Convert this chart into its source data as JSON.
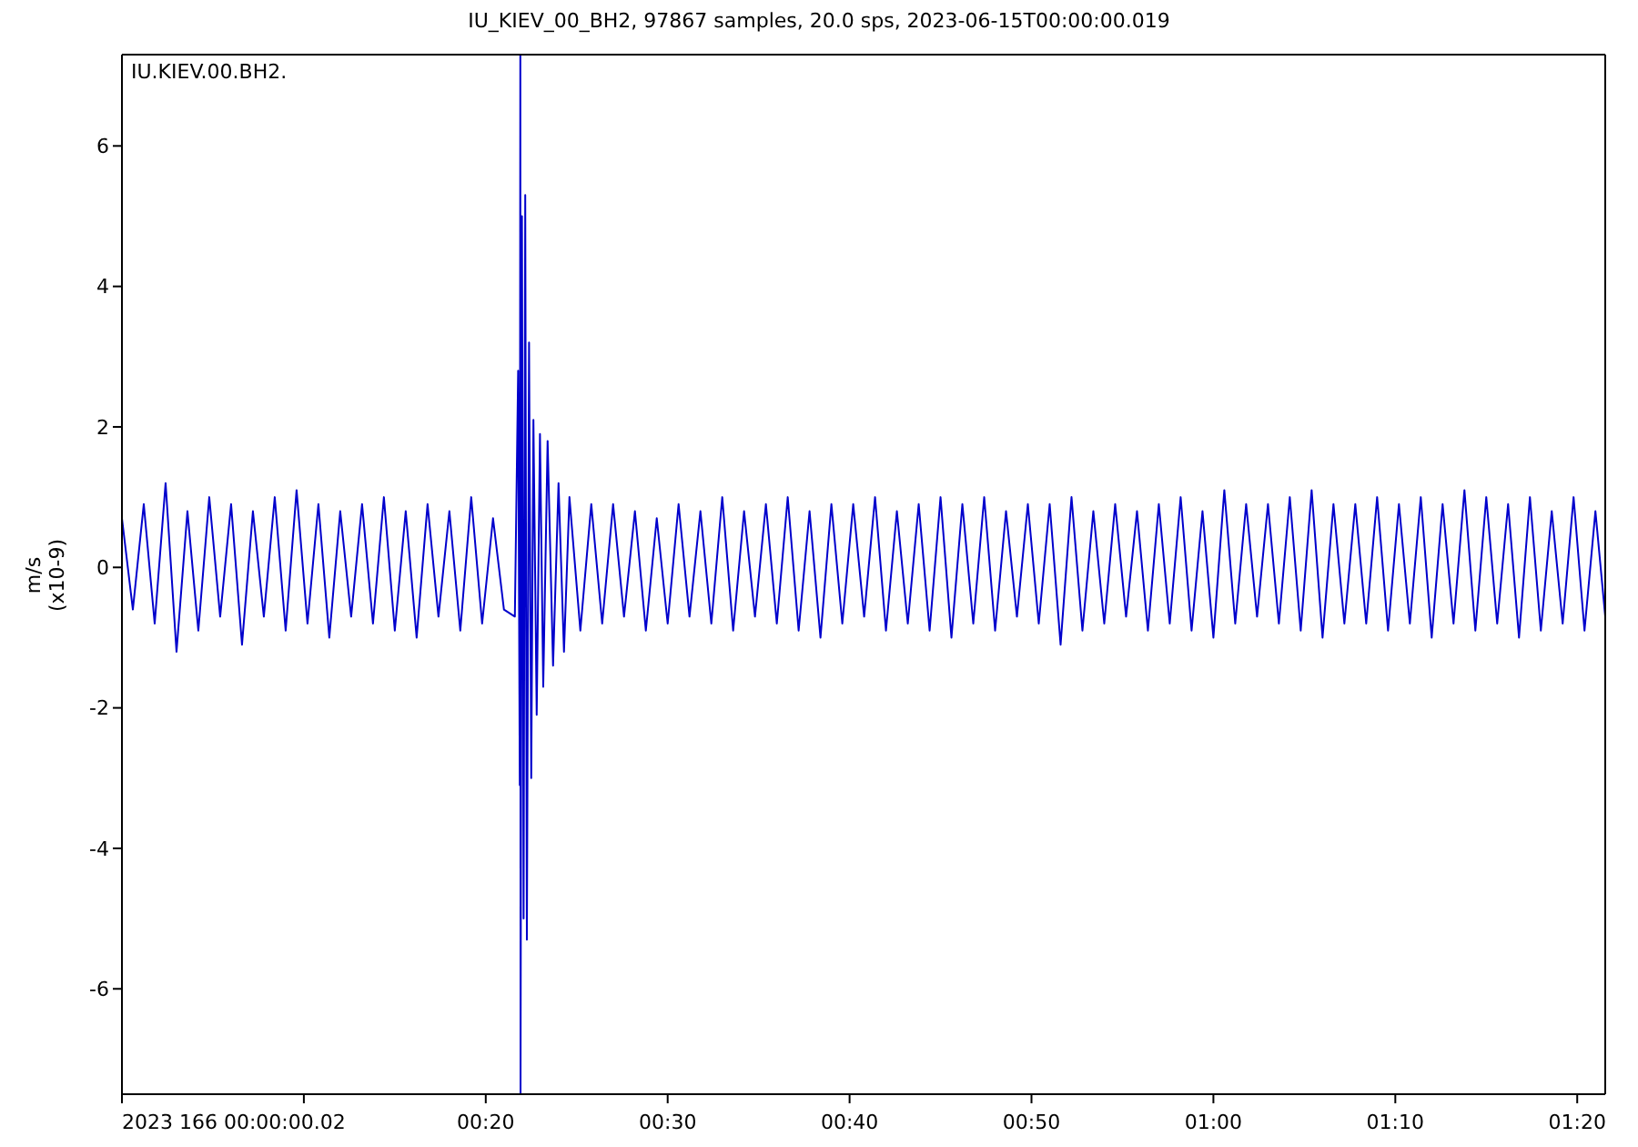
{
  "chart_data": {
    "type": "line",
    "title": "IU_KIEV_00_BH2, 97867 samples, 20.0 sps, 2023-06-15T00:00:00.019",
    "ylabel": "m/s\n(x10-9)",
    "annotations": [
      "IU.KIEV.00.BH2."
    ],
    "x": [
      0,
      0.01,
      0.02,
      0.03,
      0.04,
      0.05,
      0.06,
      0.07,
      0.08,
      0.09,
      0.1,
      0.11,
      0.12,
      0.13,
      0.14,
      0.15,
      0.16,
      0.17,
      0.18,
      0.19,
      0.2,
      0.21,
      0.22,
      0.23,
      0.24,
      0.25,
      0.26,
      0.27,
      0.28,
      0.29,
      0.3,
      0.31,
      0.32,
      0.33,
      0.34,
      0.35,
      0.36,
      0.363,
      0.3645,
      0.365,
      0.3652,
      0.3665,
      0.368,
      0.3695,
      0.371,
      0.373,
      0.375,
      0.377,
      0.38,
      0.383,
      0.386,
      0.39,
      0.395,
      0.4,
      0.405,
      0.41,
      0.42,
      0.43,
      0.44,
      0.45,
      0.46,
      0.47,
      0.48,
      0.49,
      0.5,
      0.51,
      0.52,
      0.53,
      0.54,
      0.55,
      0.56,
      0.57,
      0.58,
      0.59,
      0.6,
      0.61,
      0.62,
      0.63,
      0.64,
      0.65,
      0.66,
      0.67,
      0.68,
      0.69,
      0.7,
      0.71,
      0.72,
      0.73,
      0.74,
      0.75,
      0.76,
      0.77,
      0.78,
      0.79,
      0.8,
      0.81,
      0.82,
      0.83,
      0.84,
      0.85,
      0.86,
      0.87,
      0.88,
      0.89,
      0.9,
      0.91,
      0.92,
      0.93,
      0.94,
      0.95,
      0.96,
      0.97,
      0.98,
      0.99,
      1,
      1.01,
      1.02,
      1.03,
      1.04,
      1.05,
      1.06,
      1.07,
      1.08,
      1.09,
      1.1,
      1.11,
      1.12,
      1.13,
      1.14,
      1.15,
      1.16,
      1.17,
      1.18,
      1.19,
      1.2,
      1.21,
      1.22,
      1.23,
      1.24,
      1.25,
      1.26,
      1.27,
      1.28,
      1.29,
      1.3,
      1.31,
      1.32,
      1.33,
      1.34,
      1.35,
      1.359
    ],
    "series": [
      {
        "color": "#0000cc",
        "values": [
          0.7,
          -0.6,
          0.9,
          -0.8,
          1.2,
          -1.2,
          0.8,
          -0.9,
          1.0,
          -0.7,
          0.9,
          -1.1,
          0.8,
          -0.7,
          1.0,
          -0.9,
          1.1,
          -0.8,
          0.9,
          -1.0,
          0.8,
          -0.7,
          0.9,
          -0.8,
          1.0,
          -0.9,
          0.8,
          -1.0,
          0.9,
          -0.7,
          0.8,
          -0.9,
          1.0,
          -0.8,
          0.7,
          -0.6,
          -0.7,
          2.8,
          -3.1,
          7.3,
          -7.5,
          5.0,
          -5.0,
          5.3,
          -5.3,
          3.2,
          -3.0,
          2.1,
          -2.1,
          1.9,
          -1.7,
          1.8,
          -1.4,
          1.2,
          -1.2,
          1.0,
          -0.9,
          0.9,
          -0.8,
          0.9,
          -0.7,
          0.8,
          -0.9,
          0.7,
          -0.8,
          0.9,
          -0.7,
          0.8,
          -0.8,
          1.0,
          -0.9,
          0.8,
          -0.7,
          0.9,
          -0.8,
          1.0,
          -0.9,
          0.8,
          -1.0,
          0.9,
          -0.8,
          0.9,
          -0.7,
          1.0,
          -0.9,
          0.8,
          -0.8,
          0.9,
          -0.9,
          1.0,
          -1.0,
          0.9,
          -0.8,
          1.0,
          -0.9,
          0.8,
          -0.7,
          0.9,
          -0.8,
          0.9,
          -1.1,
          1.0,
          -0.9,
          0.8,
          -0.8,
          0.9,
          -0.7,
          0.8,
          -0.9,
          0.9,
          -0.8,
          1.0,
          -0.9,
          0.8,
          -1.0,
          1.1,
          -0.8,
          0.9,
          -0.7,
          0.9,
          -0.8,
          1.0,
          -0.9,
          1.1,
          -1.0,
          0.9,
          -0.8,
          0.9,
          -0.8,
          1.0,
          -0.9,
          0.9,
          -0.8,
          1.0,
          -1.0,
          0.9,
          -0.8,
          1.1,
          -0.9,
          1.0,
          -0.8,
          0.9,
          -1.0,
          1.0,
          -0.9,
          0.8,
          -0.8,
          1.0,
          -0.9,
          0.8,
          -0.7
        ]
      }
    ],
    "xlim": [
      0,
      1.359
    ],
    "xticks": [
      {
        "value": 0,
        "label": "2023 166 00:00:00.02"
      },
      {
        "value": 0.16667,
        "label": null
      },
      {
        "value": 0.33333,
        "label": "00:20"
      },
      {
        "value": 0.5,
        "label": "00:30"
      },
      {
        "value": 0.66667,
        "label": "00:40"
      },
      {
        "value": 0.83333,
        "label": "00:50"
      },
      {
        "value": 1,
        "label": "01:00"
      },
      {
        "value": 1.16667,
        "label": "01:10"
      },
      {
        "value": 1.33333,
        "label": "01:20"
      }
    ],
    "ylim": [
      -7.5,
      7.3
    ],
    "yticks": [
      -6,
      -4,
      -2,
      0,
      2,
      4,
      6
    ],
    "grid": false,
    "legend": false,
    "marker": "none",
    "line_style": "solid"
  }
}
